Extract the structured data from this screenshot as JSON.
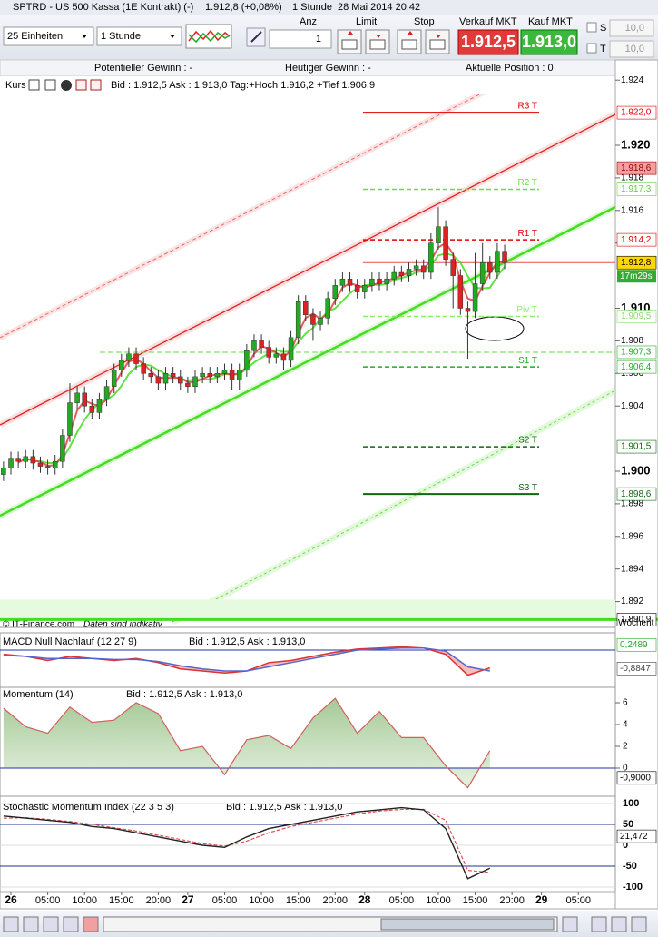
{
  "title_bar": {
    "instrument": "SPTRD - US 500 Kassa (1E Kontrakt) (-)",
    "quote": "1.912,8 (+0,08%)",
    "interval": "1 Stunde",
    "datetime": "28 Mai 2014 20:42"
  },
  "toolbar": {
    "units": "25 Einheiten",
    "period": "1 Stunde",
    "anz_label": "Anz",
    "anz_value": "1",
    "limit_label": "Limit",
    "stop_label": "Stop",
    "sell_label": "Verkauf MKT",
    "buy_label": "Kauf MKT",
    "sell_price": "1.912,5",
    "buy_price": "1.913,0",
    "s_label": "S",
    "t_label": "T",
    "s_value": "10,0",
    "t_value": "10,0"
  },
  "info_bar": {
    "potential": "Potentieller Gewinn : -",
    "today": "Heutiger Gewinn : -",
    "position": "Aktuelle Position : 0"
  },
  "main_chart": {
    "type": "candlestick",
    "name": "Kurs",
    "quote_line": "Bid : 1.912,5 Ask : 1.913,0 Tag:+Hoch 1.916,2 +Tief 1.906,9",
    "up_color": "#22aa22",
    "down_color": "#dd2222",
    "candles": [
      [
        1.8998,
        1.9006,
        1.8994,
        1.9002
      ],
      [
        1.9002,
        1.9012,
        1.8998,
        1.9008
      ],
      [
        1.9008,
        1.9012,
        1.9002,
        1.9006
      ],
      [
        1.9006,
        1.9013,
        1.9002,
        1.9009
      ],
      [
        1.9009,
        1.9013,
        1.9001,
        1.9005
      ],
      [
        1.9005,
        1.9009,
        1.8999,
        1.9003
      ],
      [
        1.9003,
        1.9007,
        1.8998,
        1.9002
      ],
      [
        1.9002,
        1.901,
        1.8998,
        1.9006
      ],
      [
        1.9006,
        1.9026,
        1.9002,
        1.9022
      ],
      [
        1.9022,
        1.9054,
        1.9018,
        1.9042
      ],
      [
        1.9042,
        1.9052,
        1.9038,
        1.9048
      ],
      [
        1.9048,
        1.9052,
        1.9036,
        1.904
      ],
      [
        1.904,
        1.9044,
        1.9032,
        1.9036
      ],
      [
        1.9036,
        1.9048,
        1.9032,
        1.9044
      ],
      [
        1.9044,
        1.9056,
        1.904,
        1.9052
      ],
      [
        1.9052,
        1.9066,
        1.9048,
        1.9062
      ],
      [
        1.9062,
        1.9072,
        1.9058,
        1.9068
      ],
      [
        1.9068,
        1.9076,
        1.9064,
        1.9072
      ],
      [
        1.9072,
        1.9076,
        1.9062,
        1.9066
      ],
      [
        1.9066,
        1.907,
        1.9056,
        1.906
      ],
      [
        1.906,
        1.9064,
        1.9054,
        1.9058
      ],
      [
        1.9058,
        1.9062,
        1.905,
        1.9054
      ],
      [
        1.9054,
        1.9064,
        1.905,
        1.906
      ],
      [
        1.906,
        1.9064,
        1.9054,
        1.9058
      ],
      [
        1.9058,
        1.9062,
        1.905,
        1.9054
      ],
      [
        1.9054,
        1.9058,
        1.9048,
        1.9052
      ],
      [
        1.9052,
        1.9062,
        1.9048,
        1.9058
      ],
      [
        1.9058,
        1.9064,
        1.9054,
        1.906
      ],
      [
        1.906,
        1.9064,
        1.9054,
        1.9058
      ],
      [
        1.9058,
        1.9064,
        1.9054,
        1.906
      ],
      [
        1.906,
        1.9066,
        1.9056,
        1.9062
      ],
      [
        1.9062,
        1.9066,
        1.905,
        1.9056
      ],
      [
        1.9056,
        1.9066,
        1.905,
        1.9062
      ],
      [
        1.9062,
        1.9078,
        1.9058,
        1.9074
      ],
      [
        1.9074,
        1.9084,
        1.907,
        1.908
      ],
      [
        1.908,
        1.9084,
        1.9072,
        1.9076
      ],
      [
        1.9076,
        1.908,
        1.9066,
        1.907
      ],
      [
        1.907,
        1.9076,
        1.9066,
        1.9072
      ],
      [
        1.9072,
        1.9076,
        1.9062,
        1.9068
      ],
      [
        1.9068,
        1.9086,
        1.9064,
        1.9082
      ],
      [
        1.9082,
        1.9108,
        1.9078,
        1.9104
      ],
      [
        1.9104,
        1.9108,
        1.9092,
        1.9096
      ],
      [
        1.9096,
        1.91,
        1.908,
        1.909
      ],
      [
        1.909,
        1.9098,
        1.9086,
        1.9094
      ],
      [
        1.9094,
        1.911,
        1.909,
        1.9106
      ],
      [
        1.9106,
        1.9118,
        1.9102,
        1.9114
      ],
      [
        1.9114,
        1.9122,
        1.911,
        1.9118
      ],
      [
        1.9118,
        1.9122,
        1.911,
        1.9114
      ],
      [
        1.9114,
        1.9118,
        1.9106,
        1.911
      ],
      [
        1.911,
        1.9118,
        1.9106,
        1.9114
      ],
      [
        1.9114,
        1.9122,
        1.911,
        1.9118
      ],
      [
        1.9118,
        1.9122,
        1.9111,
        1.9115
      ],
      [
        1.9115,
        1.9122,
        1.9111,
        1.9118
      ],
      [
        1.9118,
        1.9126,
        1.9114,
        1.9122
      ],
      [
        1.9122,
        1.9126,
        1.9116,
        1.912
      ],
      [
        1.912,
        1.9128,
        1.9116,
        1.9124
      ],
      [
        1.9124,
        1.913,
        1.912,
        1.9126
      ],
      [
        1.9126,
        1.913,
        1.9118,
        1.9122
      ],
      [
        1.9122,
        1.9146,
        1.9118,
        1.914
      ],
      [
        1.914,
        1.9162,
        1.9136,
        1.915
      ],
      [
        1.915,
        1.9154,
        1.9126,
        1.913
      ],
      [
        1.913,
        1.9134,
        1.91,
        1.912
      ],
      [
        1.912,
        1.9124,
        1.9096,
        1.91
      ],
      [
        1.91,
        1.9104,
        1.9069,
        1.9098
      ],
      [
        1.9098,
        1.9134,
        1.9094,
        1.9115
      ],
      [
        1.9115,
        1.914,
        1.9111,
        1.9128
      ],
      [
        1.9128,
        1.9132,
        1.9118,
        1.9122
      ],
      [
        1.9122,
        1.914,
        1.9118,
        1.9135
      ],
      [
        1.9135,
        1.9139,
        1.9124,
        1.9128
      ]
    ],
    "yticks": [
      1.924,
      {
        "value": 1.92,
        "label": "1.920"
      },
      1.918,
      1.916,
      1.914,
      {
        "value": 1.91,
        "label": "1.910"
      },
      1.908,
      1.906,
      1.904,
      {
        "value": 1.9,
        "label": "1.900"
      },
      1.898,
      1.896,
      1.894,
      1.892
    ],
    "pivots": [
      {
        "name": "R3 T",
        "value": 1.922,
        "color": "#e00000",
        "dash": false
      },
      {
        "name": "R2 T",
        "value": 1.9173,
        "color": "#66dd44",
        "dash": true
      },
      {
        "name": "R1 T",
        "value": 1.9142,
        "color": "#e00000",
        "dash": true
      },
      {
        "name": "Piv T",
        "value": 1.9095,
        "color": "#88ee66",
        "dash": true
      },
      {
        "name": "S1 T",
        "value": 1.9064,
        "color": "#22aa22",
        "dash": true
      },
      {
        "name": "S2 T",
        "value": 1.9015,
        "color": "#116611",
        "dash": true
      },
      {
        "name": "S3 T",
        "value": 1.8986,
        "color": "#116611",
        "dash": false
      }
    ],
    "price_tags": [
      {
        "value": 1.922,
        "label": "1.922,0",
        "color": "#e00000",
        "fill": "#ffffff"
      },
      {
        "value": 1.9186,
        "label": "1.918,6",
        "color": "#990000",
        "fill": "#f4a0a0"
      },
      {
        "value": 1.9173,
        "label": "1.917,3",
        "color": "#66cc44",
        "fill": "#ffffff"
      },
      {
        "value": 1.9142,
        "label": "1.914,2",
        "color": "#e00000",
        "fill": "#ffffff"
      },
      {
        "value": 1.9128,
        "label": "1.912,8",
        "color": "#000000",
        "fill": "#ffd700"
      },
      {
        "value": 1.9095,
        "label": "1.909,5",
        "color": "#88dd66",
        "fill": "#ffffff"
      },
      {
        "value": 1.9073,
        "label": "1.907,3",
        "color": "#22aa22",
        "fill": "#ffffff"
      },
      {
        "value": 1.9064,
        "label": "1.906,4",
        "color": "#22aa22",
        "fill": "#ffffff"
      },
      {
        "value": 1.9015,
        "label": "1.901,5",
        "color": "#116611",
        "fill": "#ffffff"
      },
      {
        "value": 1.8986,
        "label": "1.898,6",
        "color": "#116611",
        "fill": "#ffffff"
      },
      {
        "value": 1.8909,
        "label": "1.890,9",
        "color": "#000000",
        "fill": "#ffffff"
      }
    ],
    "countdown": "17m29s",
    "weekly_label": "Wöchent",
    "x_ticks": [
      "26",
      "05:00",
      "10:00",
      "15:00",
      "20:00",
      "27",
      "05:00",
      "10:00",
      "15:00",
      "20:00",
      "28",
      "05:00",
      "10:00",
      "15:00",
      "20:00",
      "29",
      "05:00"
    ]
  },
  "footer": {
    "copyright": "© IT-Finance.com",
    "note": "Daten sind indikativ"
  },
  "macd": {
    "name": "MACD Null Nachlauf (12 27 9)",
    "quote_line": "Bid : 1.912,5 Ask : 1.913,0",
    "macd": [
      -0.2,
      -0.3,
      -0.5,
      -0.3,
      -0.4,
      -0.5,
      -0.4,
      -0.6,
      -0.9,
      -1.0,
      -1.1,
      -1.0,
      -0.6,
      -0.5,
      -0.3,
      -0.1,
      0.05,
      0.1,
      0.15,
      0.1,
      -0.2,
      -1.2,
      -0.85
    ],
    "signal": [
      -0.25,
      -0.3,
      -0.4,
      -0.4,
      -0.4,
      -0.45,
      -0.45,
      -0.55,
      -0.75,
      -0.9,
      -1.0,
      -1.0,
      -0.8,
      -0.6,
      -0.4,
      -0.2,
      0,
      0.05,
      0.1,
      0.1,
      -0.05,
      -0.8,
      -1.0
    ],
    "tags": [
      {
        "value": 0.2489,
        "label": "0,2489",
        "color": "#22aa22"
      },
      {
        "value": -0.8847,
        "label": "-0,8847",
        "color": "#444444"
      }
    ]
  },
  "momentum": {
    "name": "Momentum (14)",
    "quote_line": "Bid : 1.912,5 Ask : 1.913,0",
    "values": [
      5.5,
      3.8,
      3.2,
      5.6,
      4.2,
      4.4,
      6,
      5,
      1.6,
      2,
      -0.6,
      2.6,
      3,
      1.8,
      4.6,
      6.4,
      3.2,
      5.2,
      2.8,
      2.8,
      0.2,
      -1.8,
      1.6
    ],
    "yticks": [
      6,
      4,
      2,
      0
    ],
    "tags": [
      {
        "value": -0.9,
        "label": "-0,9000",
        "color": "#000000"
      }
    ]
  },
  "stochastic": {
    "name": "Stochastic Momentum Index (22 3 5 3)",
    "quote_line": "Bid : 1.912,5 Ask : 1.913,0",
    "values": [
      70,
      65,
      60,
      55,
      45,
      40,
      30,
      20,
      10,
      0,
      -5,
      20,
      40,
      50,
      60,
      70,
      80,
      85,
      90,
      85,
      40,
      -80,
      -55
    ],
    "signal": [
      65,
      66,
      62,
      57,
      50,
      42,
      34,
      24,
      14,
      4,
      -2,
      10,
      30,
      45,
      55,
      65,
      75,
      82,
      86,
      86,
      60,
      -60,
      -65
    ],
    "yticks": [
      100,
      50,
      0,
      -50,
      -100
    ],
    "tags": [
      {
        "value": 21.472,
        "label": "21,472",
        "color": "#000000"
      }
    ]
  }
}
